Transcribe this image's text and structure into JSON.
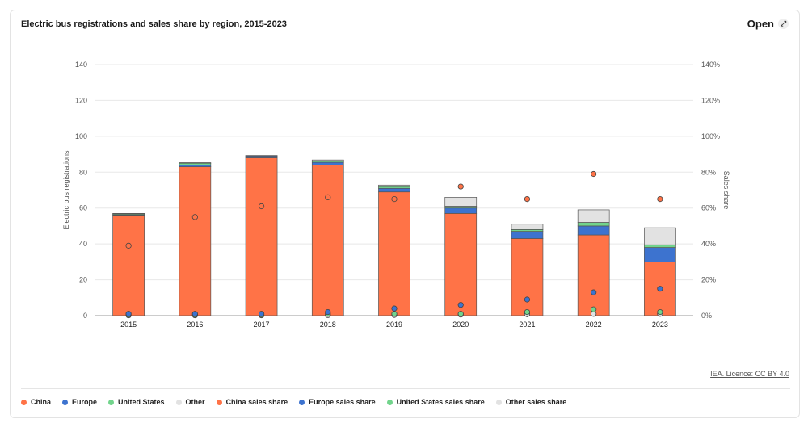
{
  "header": {
    "title": "Electric bus registrations and sales share by region, 2015-2023",
    "open_label": "Open",
    "open_icon": "expand-icon"
  },
  "footer": {
    "licence": "IEA. Licence: CC BY 4.0"
  },
  "colors": {
    "china": "#ff7347",
    "europe": "#3d73cf",
    "us": "#72d48c",
    "other": "#e2e2e2",
    "grid": "#e8e8e8",
    "axis": "#555555"
  },
  "legend": [
    {
      "label": "China",
      "color": "#ff7347"
    },
    {
      "label": "Europe",
      "color": "#3d73cf"
    },
    {
      "label": "United States",
      "color": "#72d48c"
    },
    {
      "label": "Other",
      "color": "#e2e2e2"
    },
    {
      "label": "China sales share",
      "color": "#ff7347"
    },
    {
      "label": "Europe sales share",
      "color": "#3d73cf"
    },
    {
      "label": "United States sales share",
      "color": "#72d48c"
    },
    {
      "label": "Other sales share",
      "color": "#e2e2e2"
    }
  ],
  "chart_data": {
    "type": "bar",
    "stacked": true,
    "title": "Electric bus registrations and sales share by region, 2015-2023",
    "xlabel": "",
    "ylabel": "Electric bus registrations",
    "y2label": "Sales share",
    "ylim": [
      0,
      140
    ],
    "y2lim": [
      0,
      140
    ],
    "yticks": [
      0,
      20,
      40,
      60,
      80,
      100,
      120,
      140
    ],
    "y2ticks": [
      "0%",
      "20%",
      "40%",
      "60%",
      "80%",
      "100%",
      "120%",
      "140%"
    ],
    "categories": [
      "2015",
      "2016",
      "2017",
      "2018",
      "2019",
      "2020",
      "2021",
      "2022",
      "2023"
    ],
    "series": [
      {
        "name": "China",
        "values": [
          56,
          83,
          88,
          84,
          69,
          57,
          43,
          45,
          30
        ]
      },
      {
        "name": "Europe",
        "values": [
          0.3,
          1,
          1,
          1.5,
          2,
          3,
          4,
          5,
          8
        ]
      },
      {
        "name": "United States",
        "values": [
          0.5,
          1,
          0.2,
          0.8,
          1,
          1,
          1,
          2,
          1.5
        ]
      },
      {
        "name": "Other",
        "values": [
          0.2,
          0.3,
          0.1,
          0.5,
          0.8,
          5,
          3,
          7,
          9.5
        ]
      }
    ],
    "share_series": [
      {
        "name": "China sales share",
        "values": [
          39,
          55,
          61,
          66,
          65,
          72,
          65,
          79,
          65
        ]
      },
      {
        "name": "Europe sales share",
        "values": [
          1,
          1,
          1,
          2,
          4,
          6,
          9,
          13,
          15
        ]
      },
      {
        "name": "United States sales share",
        "values": [
          0.5,
          0.5,
          0.5,
          1,
          1,
          1,
          2,
          3.5,
          2
        ]
      },
      {
        "name": "Other sales share",
        "values": [
          0.2,
          0.2,
          0.2,
          0.3,
          0.4,
          0.6,
          0.8,
          1,
          1
        ]
      }
    ]
  }
}
